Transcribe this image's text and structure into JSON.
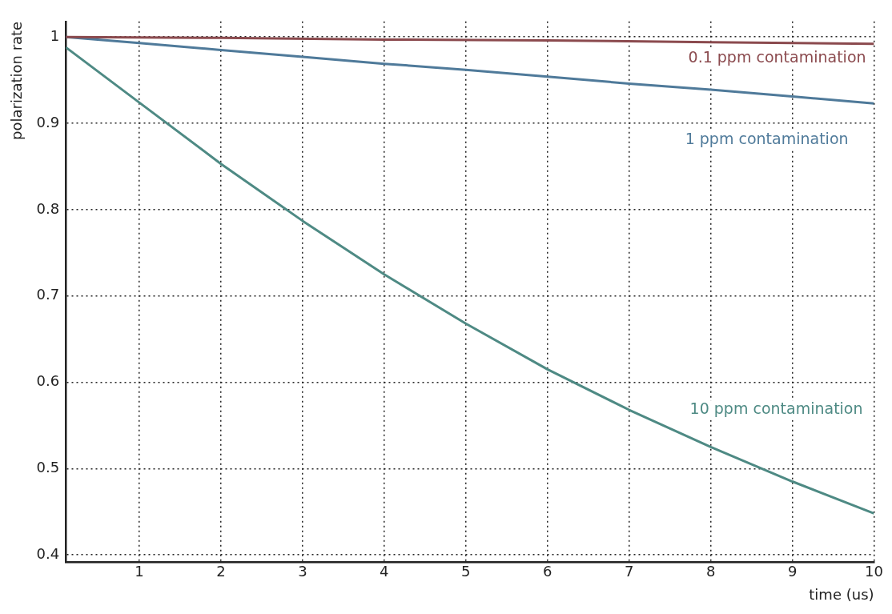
{
  "chart_data": {
    "type": "line",
    "xlabel": "time (us)",
    "ylabel": "polarization rate",
    "xlim": [
      0.1,
      10
    ],
    "ylim": [
      0.392,
      1.018
    ],
    "xticks": [
      1,
      2,
      3,
      4,
      5,
      6,
      7,
      8,
      9,
      10
    ],
    "yticks": [
      0.4,
      0.5,
      0.6,
      0.7,
      0.8,
      0.9,
      1
    ],
    "grid": true,
    "legend": false,
    "marker": "none",
    "line_style": "solid",
    "series": [
      {
        "name": "0.1 ppm contamination",
        "color": "#8b4a4e",
        "x": [
          0.1,
          2,
          4,
          6,
          8,
          10
        ],
        "values": [
          1,
          0.999,
          0.997,
          0.996,
          0.994,
          0.992
        ]
      },
      {
        "name": "1 ppm contamination",
        "color": "#4f7a9a",
        "x": [
          0.1,
          1,
          2,
          3,
          4,
          5,
          6,
          7,
          8,
          9,
          10
        ],
        "values": [
          1,
          0.993,
          0.985,
          0.977,
          0.969,
          0.962,
          0.954,
          0.946,
          0.939,
          0.931,
          0.923
        ]
      },
      {
        "name": "10 ppm contamination",
        "color": "#4e8a84",
        "x": [
          0.1,
          1,
          2,
          3,
          4,
          5,
          6,
          7,
          8,
          9,
          10
        ],
        "values": [
          0.988,
          0.924,
          0.853,
          0.787,
          0.725,
          0.668,
          0.615,
          0.568,
          0.525,
          0.485,
          0.448
        ]
      }
    ]
  }
}
